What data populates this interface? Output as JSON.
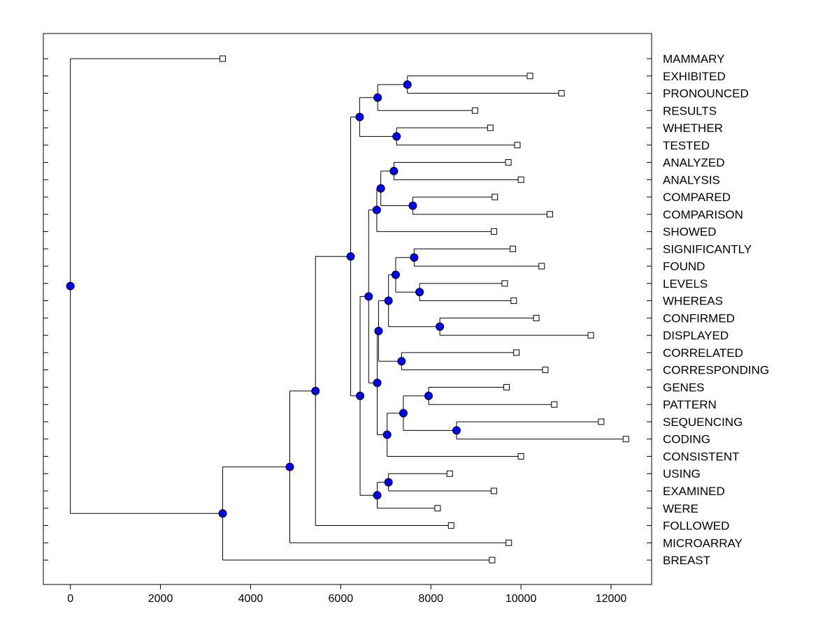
{
  "chart_data": {
    "type": "dendrogram",
    "title": "",
    "xlabel": "",
    "ylabel": "",
    "xlim": [
      -600,
      12900
    ],
    "x_ticks": [
      0,
      2000,
      4000,
      6000,
      8000,
      10000,
      12000
    ],
    "x_tick_labels": [
      "0",
      "2000",
      "4000",
      "6000",
      "8000",
      "10000",
      "12000"
    ],
    "colors": {
      "internal_node": "#0000ff",
      "leaf_marker": "#ffffff",
      "line": "#000000"
    },
    "leaves": [
      {
        "label": "MAMMARY",
        "x": 3380
      },
      {
        "label": "EXHIBITED",
        "x": 10200
      },
      {
        "label": "PRONOUNCED",
        "x": 10900
      },
      {
        "label": "RESULTS",
        "x": 8980
      },
      {
        "label": "WHETHER",
        "x": 9320
      },
      {
        "label": "TESTED",
        "x": 9920
      },
      {
        "label": "ANALYZED",
        "x": 9720
      },
      {
        "label": "ANALYSIS",
        "x": 10000
      },
      {
        "label": "COMPARED",
        "x": 9420
      },
      {
        "label": "COMPARISON",
        "x": 10640
      },
      {
        "label": "SHOWED",
        "x": 9400
      },
      {
        "label": "SIGNIFICANTLY",
        "x": 9820
      },
      {
        "label": "FOUND",
        "x": 10460
      },
      {
        "label": "LEVELS",
        "x": 9640
      },
      {
        "label": "WHEREAS",
        "x": 9840
      },
      {
        "label": "CONFIRMED",
        "x": 10340
      },
      {
        "label": "DISPLAYED",
        "x": 11550
      },
      {
        "label": "CORRELATED",
        "x": 9900
      },
      {
        "label": "CORRESPONDING",
        "x": 10540
      },
      {
        "label": "GENES",
        "x": 9680
      },
      {
        "label": "PATTERN",
        "x": 10740
      },
      {
        "label": "SEQUENCING",
        "x": 11780
      },
      {
        "label": "CODING",
        "x": 12330
      },
      {
        "label": "CONSISTENT",
        "x": 10000
      },
      {
        "label": "USING",
        "x": 8420
      },
      {
        "label": "EXAMINED",
        "x": 9400
      },
      {
        "label": "WERE",
        "x": 8150
      },
      {
        "label": "FOLLOWED",
        "x": 8450
      },
      {
        "label": "MICROARRAY",
        "x": 9730
      },
      {
        "label": "BREAST",
        "x": 9360
      }
    ],
    "nodes": [
      {
        "id": "n1",
        "x": 7480,
        "children": [
          "EXHIBITED",
          "PRONOUNCED"
        ]
      },
      {
        "id": "n2",
        "x": 6820,
        "children": [
          "n1",
          "RESULTS"
        ]
      },
      {
        "id": "n3",
        "x": 7240,
        "children": [
          "WHETHER",
          "TESTED"
        ]
      },
      {
        "id": "n4",
        "x": 6420,
        "children": [
          "n2",
          "n3"
        ]
      },
      {
        "id": "n5",
        "x": 7180,
        "children": [
          "ANALYZED",
          "ANALYSIS"
        ]
      },
      {
        "id": "n6",
        "x": 7600,
        "children": [
          "COMPARED",
          "COMPARISON"
        ]
      },
      {
        "id": "n7",
        "x": 6890,
        "children": [
          "n5",
          "n6"
        ]
      },
      {
        "id": "n8",
        "x": 6800,
        "children": [
          "n7",
          "SHOWED"
        ]
      },
      {
        "id": "n9",
        "x": 7630,
        "children": [
          "SIGNIFICANTLY",
          "FOUND"
        ]
      },
      {
        "id": "n10",
        "x": 7750,
        "children": [
          "LEVELS",
          "WHEREAS"
        ]
      },
      {
        "id": "n11",
        "x": 7220,
        "children": [
          "n9",
          "n10"
        ]
      },
      {
        "id": "n12",
        "x": 8200,
        "children": [
          "CONFIRMED",
          "DISPLAYED"
        ]
      },
      {
        "id": "n13",
        "x": 7060,
        "children": [
          "n11",
          "n12"
        ]
      },
      {
        "id": "n14",
        "x": 7350,
        "children": [
          "CORRELATED",
          "CORRESPONDING"
        ]
      },
      {
        "id": "n15",
        "x": 6840,
        "children": [
          "n13",
          "n14"
        ]
      },
      {
        "id": "n16",
        "x": 7950,
        "children": [
          "GENES",
          "PATTERN"
        ]
      },
      {
        "id": "n17",
        "x": 8570,
        "children": [
          "SEQUENCING",
          "CODING"
        ]
      },
      {
        "id": "n18",
        "x": 7390,
        "children": [
          "n16",
          "n17"
        ]
      },
      {
        "id": "n19",
        "x": 7030,
        "children": [
          "n18",
          "CONSISTENT"
        ]
      },
      {
        "id": "n20",
        "x": 6810,
        "children": [
          "n15",
          "n19"
        ]
      },
      {
        "id": "n21",
        "x": 6620,
        "children": [
          "n8",
          "n20"
        ]
      },
      {
        "id": "n22",
        "x": 7060,
        "children": [
          "USING",
          "EXAMINED"
        ]
      },
      {
        "id": "n23",
        "x": 6810,
        "children": [
          "n22",
          "WERE"
        ]
      },
      {
        "id": "n24",
        "x": 6430,
        "children": [
          "n21",
          "n23"
        ]
      },
      {
        "id": "n25",
        "x": 6220,
        "children": [
          "n4",
          "n24"
        ]
      },
      {
        "id": "n26",
        "x": 5440,
        "children": [
          "n25",
          "FOLLOWED"
        ]
      },
      {
        "id": "n27",
        "x": 4870,
        "children": [
          "n26",
          "MICROARRAY"
        ]
      },
      {
        "id": "n28",
        "x": 3380,
        "children": [
          "n27",
          "BREAST"
        ]
      },
      {
        "id": "root",
        "x": 0,
        "children": [
          "MAMMARY",
          "n28"
        ]
      }
    ]
  }
}
